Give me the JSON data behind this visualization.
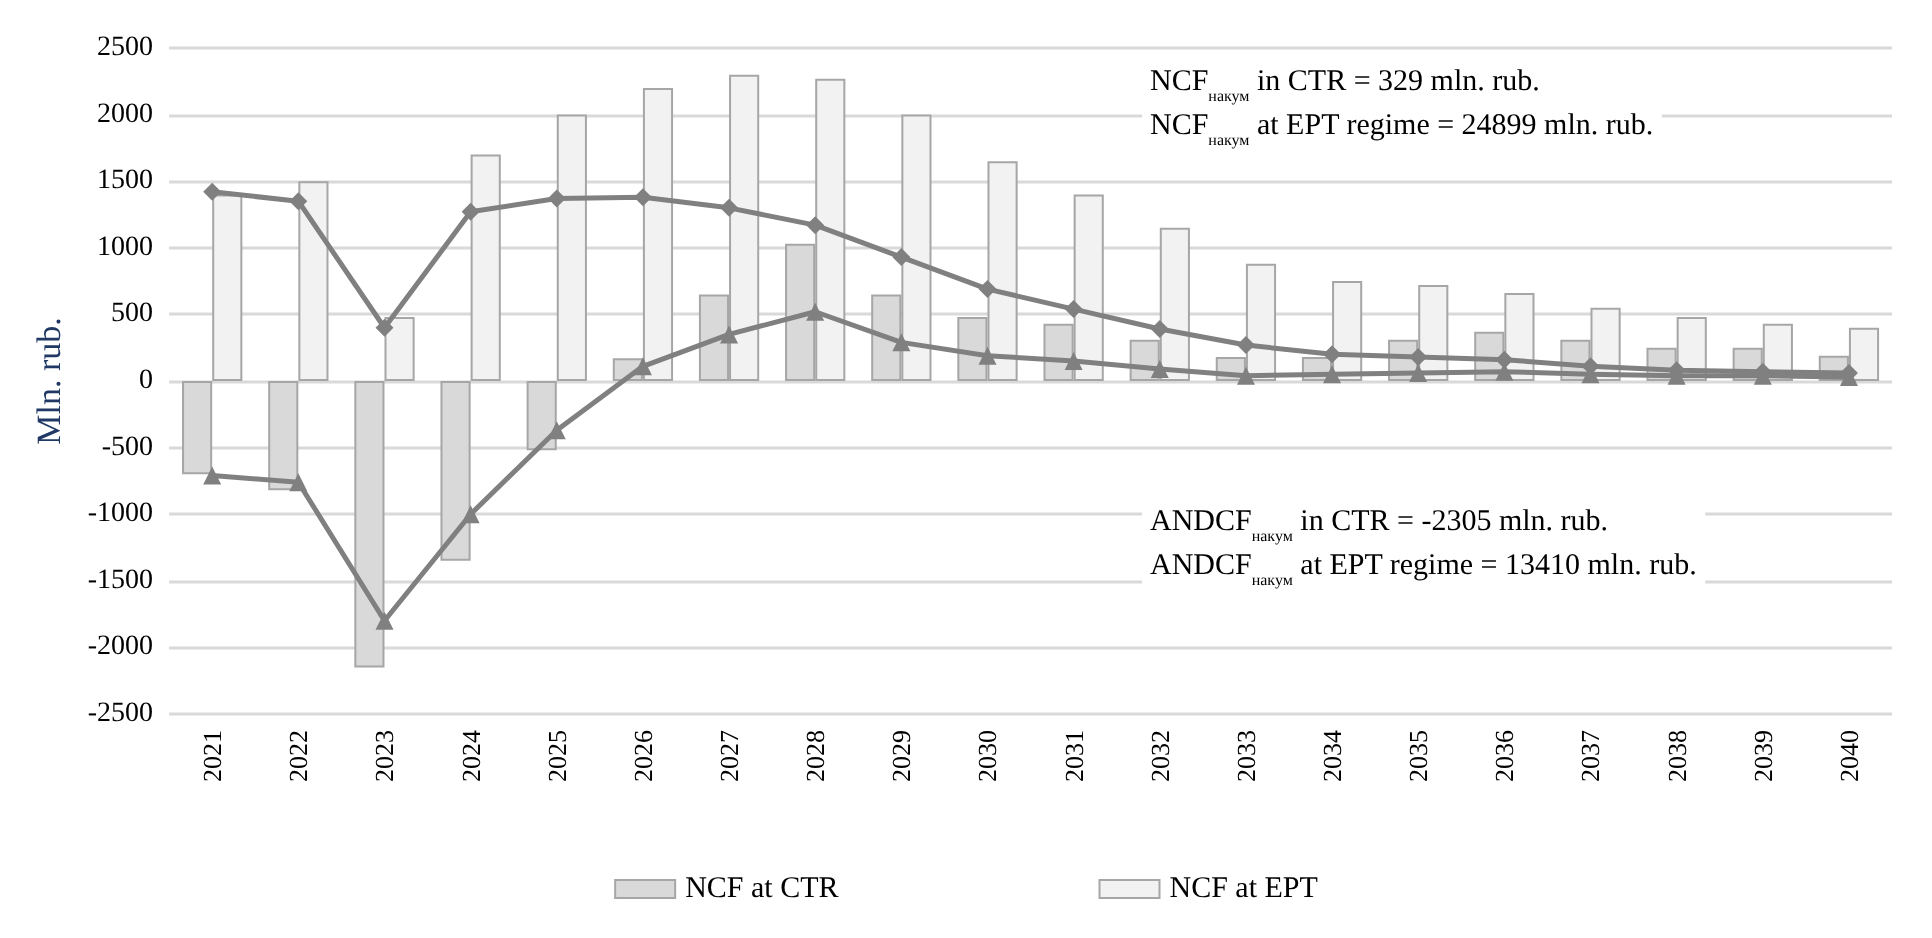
{
  "chart_data": {
    "type": "bar",
    "ylabel": "Mln. rub.",
    "categories": [
      "2021",
      "2022",
      "2023",
      "2024",
      "2025",
      "2026",
      "2027",
      "2028",
      "2029",
      "2030",
      "2031",
      "2032",
      "2033",
      "2034",
      "2035",
      "2036",
      "2037",
      "2038",
      "2039",
      "2040"
    ],
    "series": [
      {
        "name": "NCF at CTR",
        "color": "#d9d9d9",
        "values": [
          -700,
          -820,
          -2150,
          -1350,
          -520,
          170,
          650,
          1030,
          650,
          480,
          430,
          310,
          180,
          180,
          310,
          370,
          310,
          250,
          250,
          190
        ]
      },
      {
        "name": "NCF at EPT",
        "color": "#f2f2f2",
        "values": [
          1400,
          1500,
          480,
          1700,
          2000,
          2200,
          2300,
          2270,
          2000,
          1650,
          1400,
          1150,
          880,
          750,
          720,
          660,
          550,
          480,
          430,
          400
        ]
      },
      {
        "type": "line",
        "color": "#808080",
        "marker": "diamond",
        "values": [
          1420,
          1350,
          400,
          1270,
          1370,
          1380,
          1300,
          1170,
          930,
          690,
          540,
          390,
          270,
          200,
          180,
          160,
          110,
          80,
          70,
          60
        ]
      },
      {
        "type": "line",
        "color": "#808080",
        "marker": "triangle",
        "values": [
          -710,
          -760,
          -1800,
          -1000,
          -370,
          110,
          350,
          520,
          290,
          190,
          150,
          90,
          40,
          50,
          60,
          70,
          50,
          40,
          40,
          30
        ]
      }
    ],
    "ylim": [
      -2500,
      2500
    ],
    "yticks": [
      -2500,
      -2000,
      -1500,
      -1000,
      -500,
      0,
      500,
      1000,
      1500,
      2000,
      2500
    ],
    "grid": "y",
    "legend": "bottom",
    "annotations": [
      "NCF$_{накум}$ in CTR = 329 mln. rub.\nNCF$_{накум}$ at EPT regime = 24899 mln. rub.",
      "ANDCF$_{накум}$ in CTR = -2305 mln. rub.\nANDCF$_{накум}$ at EPT regime = 13410 mln. rub."
    ]
  }
}
